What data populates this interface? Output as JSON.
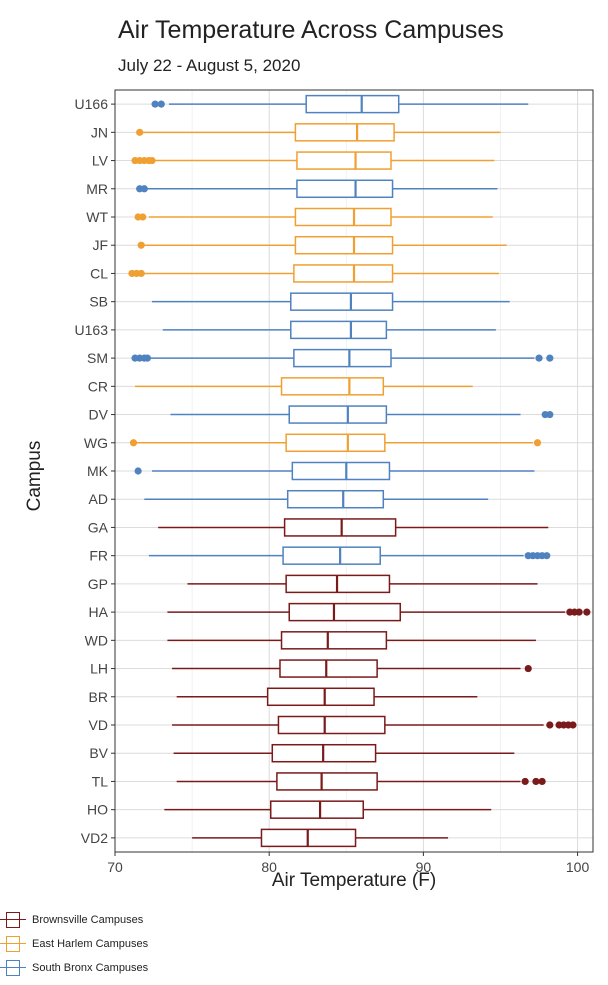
{
  "chart_data": {
    "type": "boxplot",
    "title": "Air Temperature Across Campuses",
    "subtitle": "July 22 - August 5, 2020",
    "xlabel": "Air Temperature (F)",
    "ylabel": "Campus",
    "xlim": [
      70,
      101
    ],
    "xticks": [
      70,
      80,
      90,
      100
    ],
    "grid": true,
    "legend_position": "bottom-left",
    "groups": [
      {
        "name": "Brownsville Campuses",
        "color": "#7a1a1a"
      },
      {
        "name": "East Harlem Campuses",
        "color": "#f0a033"
      },
      {
        "name": "South Bronx Campuses",
        "color": "#5082c0"
      }
    ],
    "series": [
      {
        "name": "U166",
        "group": 2,
        "whisker_low": 73.5,
        "q1": 82.4,
        "median": 86.0,
        "q3": 88.4,
        "whisker_high": 96.8,
        "outliers": [
          72.6,
          73.0
        ]
      },
      {
        "name": "JN",
        "group": 1,
        "whisker_low": 71.8,
        "q1": 81.7,
        "median": 85.7,
        "q3": 88.1,
        "whisker_high": 95.0,
        "outliers": [
          71.6
        ]
      },
      {
        "name": "LV",
        "group": 1,
        "whisker_low": 72.6,
        "q1": 81.8,
        "median": 85.6,
        "q3": 87.9,
        "whisker_high": 94.6,
        "outliers": [
          71.3,
          71.6,
          71.9,
          72.2,
          72.4
        ]
      },
      {
        "name": "MR",
        "group": 2,
        "whisker_low": 72.1,
        "q1": 81.8,
        "median": 85.6,
        "q3": 88.0,
        "whisker_high": 94.8,
        "outliers": [
          71.6,
          71.9
        ]
      },
      {
        "name": "WT",
        "group": 1,
        "whisker_low": 72.2,
        "q1": 81.7,
        "median": 85.5,
        "q3": 87.9,
        "whisker_high": 94.5,
        "outliers": [
          71.5,
          71.8
        ]
      },
      {
        "name": "JF",
        "group": 1,
        "whisker_low": 71.9,
        "q1": 81.7,
        "median": 85.5,
        "q3": 88.0,
        "whisker_high": 95.4,
        "outliers": [
          71.7
        ]
      },
      {
        "name": "CL",
        "group": 1,
        "whisker_low": 71.8,
        "q1": 81.6,
        "median": 85.5,
        "q3": 88.0,
        "whisker_high": 94.9,
        "outliers": [
          71.1,
          71.4,
          71.7
        ]
      },
      {
        "name": "SB",
        "group": 2,
        "whisker_low": 72.4,
        "q1": 81.4,
        "median": 85.3,
        "q3": 88.0,
        "whisker_high": 95.6,
        "outliers": []
      },
      {
        "name": "U163",
        "group": 2,
        "whisker_low": 73.1,
        "q1": 81.4,
        "median": 85.3,
        "q3": 87.6,
        "whisker_high": 94.7,
        "outliers": []
      },
      {
        "name": "SM",
        "group": 2,
        "whisker_low": 72.3,
        "q1": 81.6,
        "median": 85.2,
        "q3": 87.9,
        "whisker_high": 97.2,
        "outliers": [
          71.3,
          71.6,
          71.9,
          72.1,
          97.5,
          98.2
        ]
      },
      {
        "name": "CR",
        "group": 1,
        "whisker_low": 71.3,
        "q1": 80.8,
        "median": 85.2,
        "q3": 87.4,
        "whisker_high": 93.2,
        "outliers": []
      },
      {
        "name": "DV",
        "group": 2,
        "whisker_low": 73.6,
        "q1": 81.3,
        "median": 85.1,
        "q3": 87.6,
        "whisker_high": 96.3,
        "outliers": [
          97.9,
          98.2
        ]
      },
      {
        "name": "WG",
        "group": 1,
        "whisker_low": 71.4,
        "q1": 81.1,
        "median": 85.1,
        "q3": 87.5,
        "whisker_high": 97.1,
        "outliers": [
          71.2,
          97.4
        ]
      },
      {
        "name": "MK",
        "group": 2,
        "whisker_low": 72.4,
        "q1": 81.5,
        "median": 85.0,
        "q3": 87.8,
        "whisker_high": 97.2,
        "outliers": [
          71.5
        ]
      },
      {
        "name": "AD",
        "group": 2,
        "whisker_low": 71.9,
        "q1": 81.2,
        "median": 84.8,
        "q3": 87.4,
        "whisker_high": 94.2,
        "outliers": []
      },
      {
        "name": "GA",
        "group": 0,
        "whisker_low": 72.8,
        "q1": 81.0,
        "median": 84.7,
        "q3": 88.2,
        "whisker_high": 98.1,
        "outliers": []
      },
      {
        "name": "FR",
        "group": 2,
        "whisker_low": 72.2,
        "q1": 80.9,
        "median": 84.6,
        "q3": 87.2,
        "whisker_high": 96.5,
        "outliers": [
          96.8,
          97.1,
          97.4,
          97.7,
          98.0
        ]
      },
      {
        "name": "GP",
        "group": 0,
        "whisker_low": 74.7,
        "q1": 81.1,
        "median": 84.4,
        "q3": 87.8,
        "whisker_high": 97.4,
        "outliers": []
      },
      {
        "name": "HA",
        "group": 0,
        "whisker_low": 73.4,
        "q1": 81.3,
        "median": 84.2,
        "q3": 88.5,
        "whisker_high": 99.2,
        "outliers": [
          99.5,
          99.8,
          100.1,
          100.6
        ]
      },
      {
        "name": "WD",
        "group": 0,
        "whisker_low": 73.4,
        "q1": 80.8,
        "median": 83.8,
        "q3": 87.6,
        "whisker_high": 97.3,
        "outliers": []
      },
      {
        "name": "LH",
        "group": 0,
        "whisker_low": 73.7,
        "q1": 80.7,
        "median": 83.7,
        "q3": 87.0,
        "whisker_high": 96.3,
        "outliers": [
          96.8
        ]
      },
      {
        "name": "BR",
        "group": 0,
        "whisker_low": 74.0,
        "q1": 79.9,
        "median": 83.6,
        "q3": 86.8,
        "whisker_high": 93.5,
        "outliers": []
      },
      {
        "name": "VD",
        "group": 0,
        "whisker_low": 73.7,
        "q1": 80.6,
        "median": 83.6,
        "q3": 87.5,
        "whisker_high": 97.8,
        "outliers": [
          98.2,
          98.8,
          99.1,
          99.4,
          99.7
        ]
      },
      {
        "name": "BV",
        "group": 0,
        "whisker_low": 73.8,
        "q1": 80.2,
        "median": 83.5,
        "q3": 86.9,
        "whisker_high": 95.9,
        "outliers": []
      },
      {
        "name": "TL",
        "group": 0,
        "whisker_low": 74.0,
        "q1": 80.5,
        "median": 83.4,
        "q3": 87.0,
        "whisker_high": 96.3,
        "outliers": [
          96.6,
          97.3,
          97.7
        ]
      },
      {
        "name": "HO",
        "group": 0,
        "whisker_low": 73.2,
        "q1": 80.1,
        "median": 83.3,
        "q3": 86.1,
        "whisker_high": 94.4,
        "outliers": []
      },
      {
        "name": "VD2",
        "group": 0,
        "whisker_low": 75.0,
        "q1": 79.5,
        "median": 82.5,
        "q3": 85.6,
        "whisker_high": 91.6,
        "outliers": []
      }
    ]
  }
}
